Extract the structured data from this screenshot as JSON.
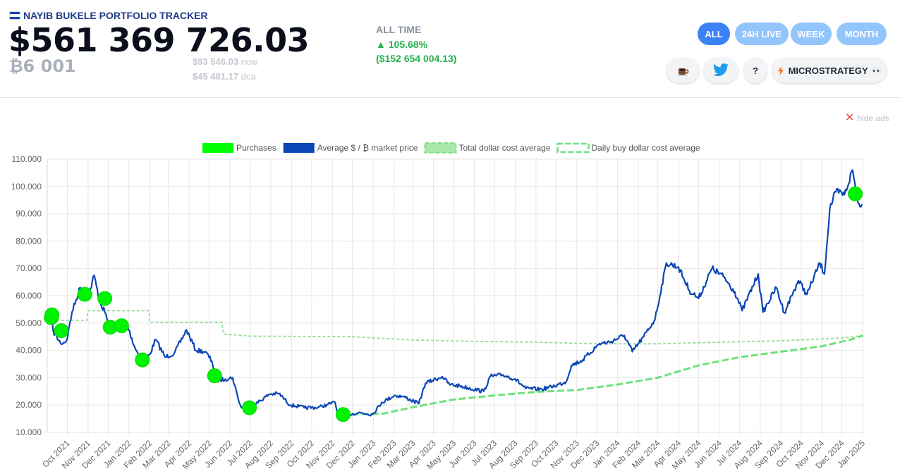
{
  "header": {
    "brand": "NAYIB BUKELE PORTFOLIO TRACKER",
    "total_value": "$561 369 726.03",
    "btc_amount": "₿6 001",
    "price_now_value": "$93 546.03",
    "price_now_label": "now",
    "dca_value": "$45 481.17",
    "dca_label": "dca",
    "flag_colors": [
      "#0f47af",
      "#ffffff",
      "#0f47af"
    ]
  },
  "performance": {
    "label": "ALL TIME",
    "percent": "▲ 105.68%",
    "amount": "($152 654 004.13)",
    "color": "#22b24c"
  },
  "ranges": [
    {
      "label": "ALL",
      "active": true
    },
    {
      "label": "24H LIVE",
      "active": false
    },
    {
      "label": "WEEK",
      "active": false
    },
    {
      "label": "MONTH",
      "active": false
    }
  ],
  "actions": {
    "coffee_icon": "coffee-icon",
    "twitter_icon": "twitter-bird-icon",
    "help_label": "?",
    "microstrategy_label": "MICROSTRATEGY",
    "microstrategy_suffix": "👀",
    "microstrategy_icon": "lightning-icon"
  },
  "ads": {
    "label": "hide ads",
    "icon": "close-icon"
  },
  "chart_data": {
    "type": "line",
    "x_range": [
      "2021-09-01",
      "2025-01-01"
    ],
    "ylim": [
      10000,
      110000
    ],
    "y_ticks": [
      "10.000",
      "20.000",
      "30.000",
      "40.000",
      "50.000",
      "60.000",
      "70.000",
      "80.000",
      "90.000",
      "100.000",
      "110.000"
    ],
    "x_ticks": [
      "Oct 2021",
      "Nov 2021",
      "Dec 2021",
      "Jan 2022",
      "Feb 2022",
      "Mar 2022",
      "Apr 2022",
      "May 2022",
      "Jun 2022",
      "Jul 2022",
      "Aug 2022",
      "Sep 2022",
      "Oct 2022",
      "Nov 2022",
      "Dec 2022",
      "Jan 2023",
      "Feb 2023",
      "Mar 2023",
      "Apr 2023",
      "May 2023",
      "Jun 2023",
      "Jul 2023",
      "Aug 2023",
      "Sep 2023",
      "Oct 2023",
      "Nov 2023",
      "Dec 2023",
      "Jan 2024",
      "Feb 2024",
      "Mar 2024",
      "Apr 2024",
      "May 2024",
      "Jun 2024",
      "Jul 2024",
      "Aug 2024",
      "Sep 2024",
      "Oct 2024",
      "Nov 2024",
      "Dec 2024",
      "Jan 2025"
    ],
    "grid": true,
    "legend_position": "top-center",
    "legend": [
      {
        "name": "Purchases",
        "color": "#00ff00",
        "style": "marker"
      },
      {
        "name": "Average $ / ₿ market price",
        "color": "#0b46b5",
        "style": "solid"
      },
      {
        "name": "Total dollar cost average",
        "color": "#86dd8a",
        "style": "wide-dashed"
      },
      {
        "name": "Daily buy dollar cost average",
        "color": "#86dd8a",
        "style": "dashed"
      }
    ],
    "series": [
      {
        "name": "Average $ / ₿ market price",
        "color": "#0b46b5",
        "x": [
          "2021-09-07",
          "2021-09-10",
          "2021-09-21",
          "2021-09-30",
          "2021-10-08",
          "2021-10-20",
          "2021-10-27",
          "2021-11-03",
          "2021-11-10",
          "2021-11-18",
          "2021-11-26",
          "2021-12-04",
          "2021-12-15",
          "2021-12-27",
          "2022-01-10",
          "2022-01-21",
          "2022-02-01",
          "2022-02-10",
          "2022-02-24",
          "2022-03-10",
          "2022-03-28",
          "2022-04-11",
          "2022-04-25",
          "2022-05-05",
          "2022-05-12",
          "2022-05-25",
          "2022-06-05",
          "2022-06-13",
          "2022-06-18",
          "2022-06-30",
          "2022-07-10",
          "2022-07-30",
          "2022-08-13",
          "2022-08-30",
          "2022-09-12",
          "2022-09-20",
          "2022-10-10",
          "2022-10-25",
          "2022-11-05",
          "2022-11-09",
          "2022-11-21",
          "2022-12-10",
          "2022-12-31",
          "2023-01-14",
          "2023-02-02",
          "2023-02-16",
          "2023-03-10",
          "2023-03-20",
          "2023-04-14",
          "2023-04-25",
          "2023-05-10",
          "2023-06-15",
          "2023-06-25",
          "2023-07-14",
          "2023-08-01",
          "2023-08-17",
          "2023-09-10",
          "2023-09-29",
          "2023-10-16",
          "2023-10-24",
          "2023-11-10",
          "2023-12-05",
          "2023-12-20",
          "2024-01-11",
          "2024-01-23",
          "2024-02-09",
          "2024-02-26",
          "2024-03-14",
          "2024-04-01",
          "2024-04-17",
          "2024-05-01",
          "2024-05-21",
          "2024-06-07",
          "2024-06-24",
          "2024-07-05",
          "2024-07-29",
          "2024-08-05",
          "2024-08-25",
          "2024-09-06",
          "2024-09-27",
          "2024-10-10",
          "2024-10-29",
          "2024-11-05",
          "2024-11-13",
          "2024-11-22",
          "2024-12-05",
          "2024-12-17",
          "2024-12-25",
          "2024-12-31"
        ],
        "y": [
          52000,
          47000,
          42500,
          43500,
          54000,
          63000,
          61500,
          61000,
          67500,
          58000,
          54000,
          48000,
          48500,
          51000,
          41000,
          36000,
          38500,
          44000,
          37500,
          39000,
          47500,
          40000,
          39500,
          36000,
          29000,
          29500,
          30000,
          22500,
          19000,
          19200,
          20500,
          24000,
          24200,
          20000,
          19500,
          19000,
          19100,
          20200,
          21000,
          16500,
          16300,
          17200,
          16600,
          21000,
          23500,
          23000,
          20500,
          28000,
          30400,
          27500,
          27000,
          25000,
          30500,
          31000,
          29500,
          26000,
          25800,
          27000,
          28500,
          34500,
          36500,
          42500,
          43000,
          45500,
          39500,
          45000,
          51500,
          72000,
          70500,
          62000,
          59000,
          70000,
          67000,
          61500,
          54500,
          68000,
          54000,
          63000,
          53800,
          65500,
          60500,
          72000,
          68000,
          92000,
          98000,
          97000,
          106000,
          94000,
          93500
        ]
      },
      {
        "name": "Total dollar cost average",
        "color": "#6ee27a",
        "x": [
          "2022-11-15",
          "2023-01-15",
          "2023-03-01",
          "2023-05-01",
          "2023-07-01",
          "2023-09-01",
          "2023-11-01",
          "2024-01-01",
          "2024-03-01",
          "2024-05-01",
          "2024-07-01",
          "2024-09-01",
          "2024-11-01",
          "2024-12-15",
          "2025-01-02"
        ],
        "y": [
          16500,
          16800,
          19200,
          22000,
          23500,
          24800,
          25500,
          27500,
          30000,
          34500,
          37500,
          39500,
          41500,
          44000,
          45500
        ]
      },
      {
        "name": "Daily buy dollar cost average",
        "color": "#8edc92",
        "x": [
          "2021-09-07",
          "2021-10-30",
          "2021-11-01",
          "2022-01-31",
          "2022-02-01",
          "2022-05-20",
          "2022-05-22",
          "2022-07-01",
          "2022-12-01",
          "2023-03-01",
          "2023-06-01",
          "2023-09-01",
          "2023-12-01",
          "2024-03-01",
          "2024-06-01",
          "2024-09-01",
          "2024-12-01",
          "2024-12-31"
        ],
        "y": [
          51000,
          51000,
          54500,
          54500,
          50300,
          50300,
          46000,
          45200,
          45000,
          43800,
          43300,
          43000,
          42400,
          42400,
          43000,
          43500,
          44500,
          45400
        ]
      }
    ],
    "purchases": [
      {
        "date": "2021-09-07",
        "price": 52000
      },
      {
        "date": "2021-09-08",
        "price": 53000
      },
      {
        "date": "2021-09-22",
        "price": 47200
      },
      {
        "date": "2021-10-27",
        "price": 60500
      },
      {
        "date": "2021-11-26",
        "price": 59000
      },
      {
        "date": "2021-12-04",
        "price": 48500
      },
      {
        "date": "2021-12-21",
        "price": 49000
      },
      {
        "date": "2022-01-21",
        "price": 36500
      },
      {
        "date": "2022-05-09",
        "price": 30700
      },
      {
        "date": "2022-06-30",
        "price": 19000
      },
      {
        "date": "2022-11-17",
        "price": 16500
      },
      {
        "date": "2024-12-21",
        "price": 97300
      }
    ]
  }
}
